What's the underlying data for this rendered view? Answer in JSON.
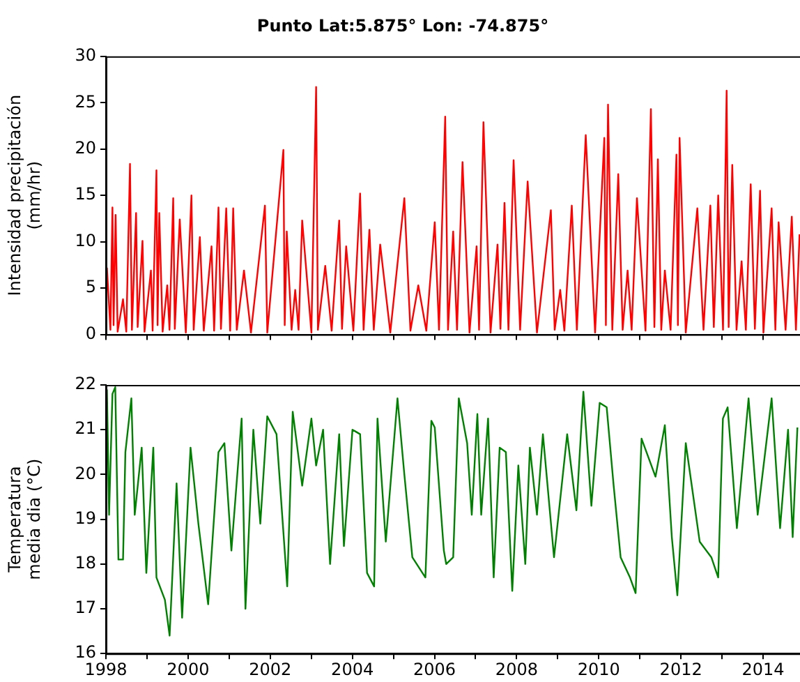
{
  "chart_data": [
    {
      "type": "line",
      "title": "Punto Lat:5.875° Lon: -74.875°",
      "ylabel": "Intensidad precipitación\n(mm/hr)",
      "xlim": [
        "1998-01-01",
        "2014-11-25"
      ],
      "ylim": [
        0,
        30
      ],
      "yticks": [
        0,
        5,
        10,
        15,
        20,
        25,
        30
      ],
      "xticks": [
        "1998",
        {
          "value": "1999",
          "label": null
        },
        "2000",
        {
          "value": "2001",
          "label": null
        },
        "2002",
        {
          "value": "2003",
          "label": null
        },
        "2004",
        {
          "value": "2005",
          "label": null
        },
        "2006",
        {
          "value": "2007",
          "label": null
        },
        "2008",
        {
          "value": "2009",
          "label": null
        },
        "2010",
        {
          "value": "2011",
          "label": null
        },
        "2012",
        {
          "value": "2013",
          "label": null
        },
        "2014"
      ],
      "tick_labels": "y",
      "grid": false,
      "legend": false,
      "marker": "none",
      "line_style": "solid",
      "series": [
        {
          "color": "#ff0000",
          "x": [
            "1998-01-10",
            "1998-02-10",
            "1998-02-28",
            "1998-03-10",
            "1998-03-28",
            "1998-04-15",
            "1998-06-02",
            "1998-07-01",
            "1998-08-03",
            "1998-08-20",
            "1998-09-26",
            "1998-10-10",
            "1998-11-22",
            "1998-12-10",
            "1999-02-05",
            "1999-02-20",
            "1999-03-26",
            "1999-04-05",
            "1999-04-20",
            "1999-05-20",
            "1999-06-30",
            "1999-07-20",
            "1999-08-22",
            "1999-09-05",
            "1999-10-19",
            "1999-12-12",
            "2000-01-31",
            "2000-02-20",
            "2000-04-15",
            "2000-05-20",
            "2000-07-28",
            "2000-08-20",
            "2000-09-28",
            "2000-10-20",
            "2000-12-06",
            "2001-01-10",
            "2001-02-06",
            "2001-03-10",
            "2001-05-13",
            "2001-07-14",
            "2001-11-15",
            "2001-12-06",
            "2002-04-28",
            "2002-05-10",
            "2002-05-28",
            "2002-07-10",
            "2002-08-11",
            "2002-09-10",
            "2002-10-12",
            "2003-01-02",
            "2003-02-13",
            "2003-03-01",
            "2003-05-05",
            "2003-07-01",
            "2003-09-06",
            "2003-10-01",
            "2003-11-07",
            "2004-01-10",
            "2004-03-10",
            "2004-04-10",
            "2004-06-01",
            "2004-07-10",
            "2004-09-05",
            "2004-12-04",
            "2005-04-08",
            "2005-06-01",
            "2005-08-10",
            "2005-10-20",
            "2006-01-03",
            "2006-02-10",
            "2006-04-06",
            "2006-05-01",
            "2006-06-16",
            "2006-07-20",
            "2006-09-07",
            "2006-11-08",
            "2007-01-10",
            "2007-02-01",
            "2007-03-12",
            "2007-05-14",
            "2007-07-15",
            "2007-08-10",
            "2007-09-15",
            "2007-10-20",
            "2007-12-05",
            "2008-02-01",
            "2008-04-08",
            "2008-06-30",
            "2008-11-01",
            "2008-12-05",
            "2009-01-23",
            "2009-03-01",
            "2009-05-06",
            "2009-06-20",
            "2009-09-07",
            "2009-11-29",
            "2010-02-19",
            "2010-03-05",
            "2010-03-24",
            "2010-05-01",
            "2010-06-23",
            "2010-08-01",
            "2010-09-14",
            "2010-10-20",
            "2010-12-06",
            "2011-02-20",
            "2011-04-09",
            "2011-05-10",
            "2011-06-10",
            "2011-07-10",
            "2011-08-11",
            "2011-10-01",
            "2011-11-22",
            "2011-12-05",
            "2011-12-20",
            "2012-02-13",
            "2012-05-26",
            "2012-07-20",
            "2012-09-19",
            "2012-10-20",
            "2012-11-28",
            "2013-01-10",
            "2013-02-11",
            "2013-03-01",
            "2013-04-02",
            "2013-05-10",
            "2013-06-24",
            "2013-08-01",
            "2013-09-13",
            "2013-10-20",
            "2013-12-05",
            "2014-01-04",
            "2014-03-18",
            "2014-04-20",
            "2014-05-19",
            "2014-07-20",
            "2014-09-13",
            "2014-10-20",
            "2014-11-21"
          ],
          "values": [
            7.2,
            0.5,
            13.7,
            1.0,
            12.9,
            0.3,
            3.8,
            0.3,
            18.4,
            0.5,
            13.1,
            0.8,
            10.1,
            0.3,
            6.9,
            0.4,
            17.7,
            1.0,
            13.1,
            0.3,
            5.3,
            0.5,
            14.7,
            0.6,
            12.4,
            0.2,
            15.0,
            0.5,
            10.5,
            0.4,
            9.5,
            0.4,
            13.7,
            0.6,
            13.6,
            0.4,
            13.6,
            0.5,
            6.9,
            0.2,
            13.9,
            0.2,
            19.9,
            1.0,
            11.1,
            0.5,
            4.8,
            0.5,
            12.3,
            0.2,
            26.7,
            0.5,
            7.4,
            0.4,
            12.3,
            0.6,
            9.5,
            0.4,
            15.2,
            0.5,
            11.3,
            0.5,
            9.7,
            0.2,
            14.7,
            0.4,
            5.3,
            0.4,
            12.1,
            0.5,
            23.5,
            0.5,
            11.1,
            0.5,
            18.6,
            0.2,
            9.5,
            0.5,
            22.9,
            0.2,
            9.7,
            0.6,
            14.2,
            0.5,
            18.8,
            0.5,
            16.5,
            0.2,
            13.4,
            0.5,
            4.8,
            0.4,
            13.9,
            0.5,
            21.5,
            0.2,
            21.2,
            1.0,
            24.8,
            0.5,
            17.3,
            0.5,
            6.9,
            0.5,
            14.7,
            0.4,
            24.3,
            0.8,
            18.9,
            0.5,
            6.9,
            0.5,
            19.4,
            1.0,
            21.2,
            0.2,
            13.6,
            0.5,
            13.9,
            0.8,
            15.0,
            0.5,
            26.3,
            0.8,
            18.3,
            0.5,
            7.9,
            0.5,
            16.2,
            0.6,
            15.5,
            0.2,
            13.6,
            0.5,
            12.1,
            0.5,
            12.7,
            0.5,
            10.8
          ]
        }
      ]
    },
    {
      "type": "line",
      "ylabel": "Temperatura\nmedia dia (°C)",
      "xlim": [
        "1998-01-01",
        "2014-11-25"
      ],
      "ylim": [
        16,
        22
      ],
      "yticks": [
        16,
        17,
        18,
        19,
        20,
        21,
        22
      ],
      "xticks": [
        "1998",
        {
          "value": "1999",
          "label": null
        },
        "2000",
        {
          "value": "2001",
          "label": null
        },
        "2002",
        {
          "value": "2003",
          "label": null
        },
        "2004",
        {
          "value": "2005",
          "label": null
        },
        "2006",
        {
          "value": "2007",
          "label": null
        },
        "2008",
        {
          "value": "2009",
          "label": null
        },
        "2010",
        {
          "value": "2011",
          "label": null
        },
        "2012",
        {
          "value": "2013",
          "label": null
        },
        "2014"
      ],
      "grid": false,
      "legend": false,
      "marker": "none",
      "line_style": "solid",
      "series": [
        {
          "color": "#008000",
          "x": [
            "1998-01-10",
            "1998-01-29",
            "1998-02-28",
            "1998-03-25",
            "1998-04-22",
            "1998-06-02",
            "1998-06-23",
            "1998-08-15",
            "1998-09-14",
            "1998-11-15",
            "1998-12-26",
            "1999-02-26",
            "1999-03-26",
            "1999-06-09",
            "1999-07-21",
            "1999-09-21",
            "1999-11-09",
            "2000-01-23",
            "2000-04-02",
            "2000-06-28",
            "2000-09-28",
            "2000-11-20",
            "2001-01-21",
            "2001-04-22",
            "2001-05-26",
            "2001-08-04",
            "2001-10-05",
            "2001-12-06",
            "2002-02-26",
            "2002-06-01",
            "2002-07-20",
            "2002-10-12",
            "2003-01-02",
            "2003-02-13",
            "2003-04-16",
            "2003-06-17",
            "2003-09-06",
            "2003-10-18",
            "2004-01-02",
            "2004-03-10",
            "2004-05-11",
            "2004-07-13",
            "2004-08-12",
            "2004-10-25",
            "2005-02-06",
            "2005-04-08",
            "2005-06-18",
            "2005-10-12",
            "2005-12-04",
            "2006-01-03",
            "2006-03-25",
            "2006-04-15",
            "2006-06-16",
            "2006-08-05",
            "2006-10-18",
            "2006-11-28",
            "2007-01-17",
            "2007-02-20",
            "2007-04-22",
            "2007-06-11",
            "2007-08-03",
            "2007-09-27",
            "2007-11-23",
            "2008-01-16",
            "2008-03-18",
            "2008-04-28",
            "2008-06-30",
            "2008-08-22",
            "2008-11-29",
            "2009-03-26",
            "2009-06-16",
            "2009-08-17",
            "2009-10-27",
            "2010-01-09",
            "2010-03-12",
            "2010-05-13",
            "2010-07-14",
            "2010-10-05",
            "2010-11-24",
            "2011-01-16",
            "2011-05-20",
            "2011-08-11",
            "2011-10-12",
            "2011-11-30",
            "2012-02-13",
            "2012-06-16",
            "2012-09-28",
            "2012-11-28",
            "2013-01-09",
            "2013-02-20",
            "2013-05-13",
            "2013-08-25",
            "2013-11-14",
            "2014-03-18",
            "2014-06-01",
            "2014-08-11",
            "2014-09-21",
            "2014-11-02"
          ],
          "values": [
            21.9,
            19.1,
            21.8,
            21.95,
            18.1,
            18.1,
            20.5,
            21.7,
            19.1,
            20.6,
            17.8,
            20.6,
            17.7,
            17.2,
            16.4,
            19.8,
            16.8,
            20.6,
            18.9,
            17.1,
            20.5,
            20.7,
            18.3,
            21.25,
            17.0,
            21.0,
            18.9,
            21.3,
            20.9,
            17.5,
            21.4,
            19.75,
            21.25,
            20.2,
            21.0,
            18.0,
            20.9,
            18.4,
            21.0,
            20.9,
            17.8,
            17.5,
            21.25,
            18.5,
            21.7,
            20.0,
            18.15,
            17.7,
            21.2,
            21.05,
            18.3,
            18.0,
            18.15,
            21.7,
            20.7,
            19.1,
            21.35,
            19.1,
            21.25,
            17.7,
            20.6,
            20.5,
            17.4,
            20.2,
            18.0,
            20.6,
            19.1,
            20.9,
            18.15,
            20.9,
            19.2,
            21.85,
            19.3,
            21.6,
            21.5,
            19.75,
            18.15,
            17.7,
            17.35,
            20.8,
            19.95,
            21.1,
            18.6,
            17.3,
            20.7,
            18.5,
            18.15,
            17.7,
            21.25,
            21.5,
            18.8,
            21.7,
            19.1,
            21.7,
            18.8,
            21.0,
            18.6,
            21.05
          ]
        }
      ]
    }
  ]
}
